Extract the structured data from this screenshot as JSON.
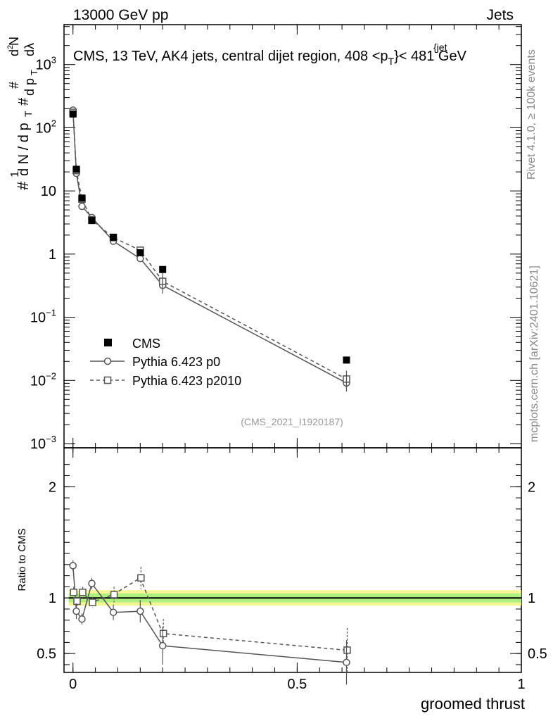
{
  "header": {
    "left": "13000 GeV pp",
    "right": "Jets"
  },
  "side_labels": {
    "rivet": "Rivet 4.1.0, ≥ 100k events",
    "mcplots": "mcplots.cern.ch [arXiv:2401.10621]"
  },
  "chart_data": {
    "type": "line",
    "title_parts": {
      "pre": "CMS, 13 TeV, AK4 jets, central dijet region, 408 <p",
      "sub": "T",
      "sup": "{jet",
      "post": "}< 481 GeV"
    },
    "xlabel": "groomed thrust",
    "ylabel_main": "1/dN/dp_T d²N/dp_T dλ",
    "ylabel_ratio": "Ratio to CMS",
    "analysis_tag": "(CMS_2021_I1920187)",
    "xlim": [
      -0.02,
      1.0
    ],
    "main": {
      "ylim": [
        0.001,
        5000
      ],
      "yscale": "log",
      "ytick_values": [
        0.001,
        0.01,
        0.1,
        1,
        10,
        100,
        1000
      ],
      "ytick_labels": [
        {
          "base": "10",
          "exp": "−3"
        },
        {
          "base": "10",
          "exp": "−2"
        },
        {
          "base": "10",
          "exp": "−1"
        },
        {
          "base": "1",
          "exp": ""
        },
        {
          "base": "10",
          "exp": ""
        },
        {
          "base": "10",
          "exp": "2"
        },
        {
          "base": "10",
          "exp": "3"
        }
      ]
    },
    "ratio": {
      "ylim": [
        0.33,
        2.35
      ],
      "ytick_values": [
        0.5,
        1,
        2
      ],
      "ytick_labels": [
        "0.5",
        "1",
        "2"
      ],
      "band_yellow": [
        0.93,
        1.07
      ],
      "band_green": [
        0.96,
        1.04
      ]
    },
    "xticks": [
      0,
      0.5,
      1
    ],
    "xtick_labels": [
      "0",
      "0.5",
      "1"
    ],
    "x": [
      0.0,
      0.0075,
      0.02,
      0.042,
      0.09,
      0.15,
      0.2,
      0.61
    ],
    "series": [
      {
        "name": "CMS",
        "style": "data",
        "values": [
          165,
          22,
          7.7,
          3.4,
          1.85,
          1.05,
          0.57,
          0.021
        ],
        "ratio": [
          1,
          1,
          1,
          1,
          1,
          1,
          1,
          1
        ]
      },
      {
        "name": "Pythia 6.423 p0",
        "style": "solid-circle",
        "values": [
          190,
          19,
          5.7,
          3.8,
          1.6,
          0.85,
          0.32,
          0.0091
        ],
        "ratio": [
          1.29,
          0.88,
          0.81,
          1.13,
          0.87,
          0.88,
          0.57,
          0.42
        ],
        "ratio_err": [
          0.05,
          0.07,
          0.05,
          0.05,
          0.07,
          0.1,
          0.17,
          0.2
        ]
      },
      {
        "name": "Pythia 6.423 p2010",
        "style": "dashed-square",
        "values": [
          175,
          21,
          7.4,
          3.5,
          1.82,
          1.15,
          0.37,
          0.0105
        ],
        "ratio": [
          1.05,
          0.97,
          1.05,
          0.96,
          1.03,
          1.18,
          0.68,
          0.53
        ],
        "ratio_err": [
          0.05,
          0.07,
          0.05,
          0.05,
          0.07,
          0.1,
          0.13,
          0.2
        ]
      }
    ],
    "legend": {
      "position": "lower-left",
      "entries": [
        "CMS",
        "Pythia 6.423 p0",
        "Pythia 6.423 p2010"
      ]
    }
  }
}
